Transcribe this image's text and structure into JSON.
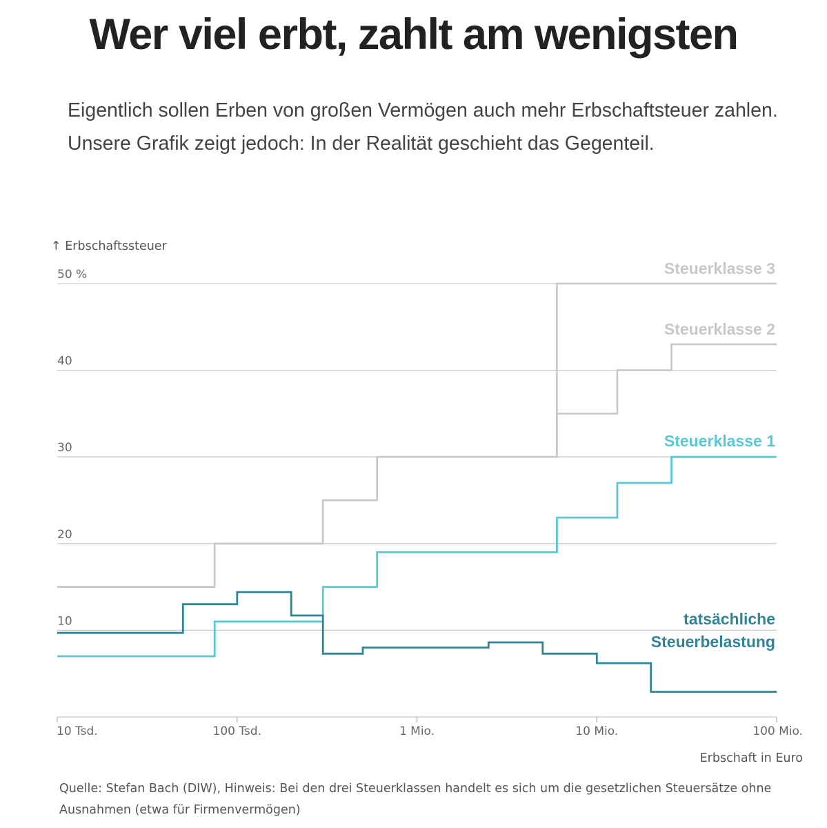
{
  "header": {
    "title": "Wer viel erbt, zahlt am wenigsten",
    "subtitle": "Eigentlich sollen Erben von großen Vermögen auch mehr Erbschaftsteuer zahlen. Unsere Grafik zeigt jedoch: In der Realität geschieht das Gegenteil."
  },
  "footer": {
    "source": "Quelle: Stefan Bach (DIW), Hinweis: Bei den drei Steuerklassen handelt es sich um die gesetzlichen Steuersätze ohne Ausnahmen (etwa für Firmenvermögen)"
  },
  "chart_data": {
    "type": "line",
    "step": true,
    "title": "Wer viel erbt, zahlt am wenigsten",
    "xlabel": "Erbschaft in Euro",
    "ylabel": "↑ Erbschaftssteuer",
    "x_scale": "log",
    "xlim": [
      10000,
      100000000
    ],
    "ylim": [
      0,
      50
    ],
    "x_ticks": [
      10000,
      100000,
      1000000,
      10000000,
      100000000
    ],
    "x_tick_labels": [
      "10 Tsd.",
      "100 Tsd.",
      "1 Mio.",
      "10 Mio.",
      "100 Mio."
    ],
    "y_ticks": [
      10,
      20,
      30,
      40,
      50
    ],
    "y_tick_labels": [
      "10",
      "20",
      "30",
      "40",
      "50 %"
    ],
    "grid": true,
    "series": [
      {
        "name": "Steuerklasse 3",
        "color": "#c8c8cc",
        "points": [
          [
            10000,
            15
          ],
          [
            75000,
            15
          ],
          [
            75000,
            20
          ],
          [
            300000,
            20
          ],
          [
            300000,
            25
          ],
          [
            600000,
            25
          ],
          [
            600000,
            30
          ],
          [
            6000000,
            30
          ],
          [
            6000000,
            50
          ],
          [
            100000000,
            50
          ]
        ]
      },
      {
        "name": "Steuerklasse 2",
        "color": "#c8c8cc",
        "points": [
          [
            10000,
            15
          ],
          [
            75000,
            15
          ],
          [
            75000,
            20
          ],
          [
            300000,
            20
          ],
          [
            300000,
            25
          ],
          [
            600000,
            25
          ],
          [
            600000,
            30
          ],
          [
            6000000,
            30
          ],
          [
            6000000,
            35
          ],
          [
            13000000,
            35
          ],
          [
            13000000,
            40
          ],
          [
            26000000,
            40
          ],
          [
            26000000,
            43
          ],
          [
            100000000,
            43
          ]
        ]
      },
      {
        "name": "Steuerklasse 1",
        "color": "#5bc8d6",
        "points": [
          [
            10000,
            7
          ],
          [
            75000,
            7
          ],
          [
            75000,
            11
          ],
          [
            300000,
            11
          ],
          [
            300000,
            15
          ],
          [
            600000,
            15
          ],
          [
            600000,
            19
          ],
          [
            6000000,
            19
          ],
          [
            6000000,
            23
          ],
          [
            13000000,
            23
          ],
          [
            13000000,
            27
          ],
          [
            26000000,
            27
          ],
          [
            26000000,
            30
          ],
          [
            100000000,
            30
          ]
        ]
      },
      {
        "name": "tatsächliche Steuerbelastung",
        "color": "#2f8597",
        "points": [
          [
            10000,
            9.7
          ],
          [
            50000,
            9.7
          ],
          [
            50000,
            13
          ],
          [
            100000,
            13
          ],
          [
            100000,
            14.4
          ],
          [
            200000,
            14.4
          ],
          [
            200000,
            11.7
          ],
          [
            300000,
            11.7
          ],
          [
            300000,
            7.3
          ],
          [
            500000,
            7.3
          ],
          [
            500000,
            8
          ],
          [
            2500000,
            8
          ],
          [
            2500000,
            8.6
          ],
          [
            5000000,
            8.6
          ],
          [
            5000000,
            7.3
          ],
          [
            10000000,
            7.3
          ],
          [
            10000000,
            6.2
          ],
          [
            20000000,
            6.2
          ],
          [
            20000000,
            2.9
          ],
          [
            100000000,
            2.9
          ]
        ]
      }
    ],
    "annotations": [
      {
        "text": "Steuerklasse 3",
        "series": "Steuerklasse 3",
        "color": "#c8c8cc"
      },
      {
        "text": "Steuerklasse 2",
        "series": "Steuerklasse 2",
        "color": "#c8c8cc"
      },
      {
        "text": "Steuerklasse 1",
        "series": "Steuerklasse 1",
        "color": "#5bc8d6"
      },
      {
        "text": "tatsächliche",
        "series": "tatsächliche Steuerbelastung",
        "color": "#2f8597"
      },
      {
        "text": "Steuerbelastung",
        "series": "tatsächliche Steuerbelastung",
        "color": "#2f8597"
      }
    ]
  }
}
